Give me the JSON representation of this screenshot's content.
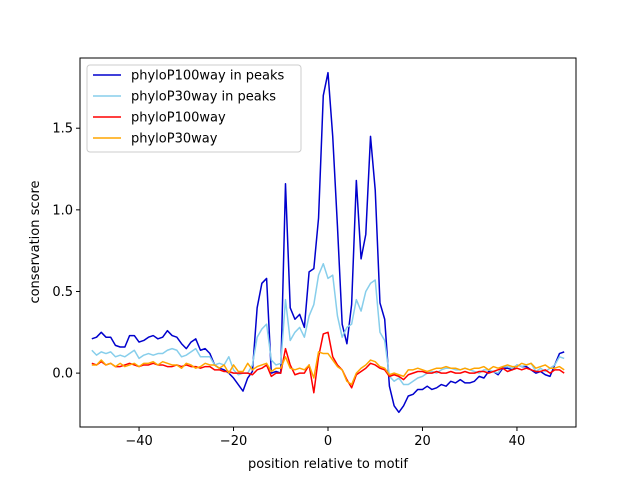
{
  "chart_data": {
    "type": "line",
    "title": "",
    "xlabel": "position relative to motif",
    "ylabel": "conservation score",
    "xlim": [
      -52.5,
      52.5
    ],
    "ylim": [
      -0.33,
      1.93
    ],
    "xticks": [
      -40,
      -20,
      0,
      20,
      40
    ],
    "yticks": [
      0.0,
      0.5,
      1.0,
      1.5
    ],
    "xtick_labels": [
      "−40",
      "−20",
      "0",
      "20",
      "40"
    ],
    "ytick_labels": [
      "0.0",
      "0.5",
      "1.0",
      "1.5"
    ],
    "grid": false,
    "legend_position": "top-left",
    "x_start": -50,
    "x_end": 50,
    "series": [
      {
        "name": "phyloP100way in peaks",
        "color": "#0000cd",
        "values": [
          0.21,
          0.22,
          0.25,
          0.22,
          0.22,
          0.17,
          0.16,
          0.16,
          0.23,
          0.23,
          0.19,
          0.2,
          0.22,
          0.23,
          0.21,
          0.22,
          0.26,
          0.23,
          0.22,
          0.18,
          0.15,
          0.19,
          0.21,
          0.14,
          0.15,
          0.12,
          0.05,
          0.03,
          0.02,
          0.0,
          -0.03,
          -0.07,
          -0.11,
          -0.03,
          0.01,
          0.4,
          0.55,
          0.58,
          0.0,
          0.01,
          0.0,
          1.16,
          0.4,
          0.33,
          0.36,
          0.28,
          0.62,
          0.64,
          0.95,
          1.7,
          1.84,
          1.45,
          0.9,
          0.3,
          0.18,
          0.42,
          1.18,
          0.7,
          0.85,
          1.45,
          1.12,
          0.43,
          0.33,
          -0.08,
          -0.2,
          -0.24,
          -0.2,
          -0.14,
          -0.13,
          -0.1,
          -0.1,
          -0.08,
          -0.1,
          -0.09,
          -0.07,
          -0.08,
          -0.05,
          -0.06,
          -0.04,
          -0.06,
          -0.06,
          -0.05,
          -0.02,
          -0.03,
          0.01,
          0.01,
          -0.01,
          0.03,
          0.03,
          0.02,
          0.05,
          0.04,
          0.04,
          0.02,
          0.0,
          0.01,
          -0.01,
          -0.02,
          0.05,
          0.12,
          0.13
        ]
      },
      {
        "name": "phyloP30way in peaks",
        "color": "#87ceeb",
        "values": [
          0.14,
          0.11,
          0.13,
          0.12,
          0.13,
          0.1,
          0.11,
          0.1,
          0.12,
          0.14,
          0.09,
          0.11,
          0.12,
          0.11,
          0.12,
          0.12,
          0.14,
          0.15,
          0.14,
          0.1,
          0.11,
          0.13,
          0.15,
          0.1,
          0.1,
          0.1,
          0.05,
          0.06,
          0.05,
          0.1,
          0.02,
          -0.01,
          0.0,
          0.0,
          0.05,
          0.22,
          0.27,
          0.3,
          0.08,
          0.05,
          0.06,
          0.45,
          0.2,
          0.25,
          0.28,
          0.22,
          0.35,
          0.42,
          0.6,
          0.67,
          0.58,
          0.6,
          0.35,
          0.22,
          0.28,
          0.3,
          0.45,
          0.38,
          0.5,
          0.55,
          0.57,
          0.25,
          0.2,
          -0.02,
          -0.05,
          -0.03,
          -0.07,
          -0.07,
          -0.05,
          -0.03,
          -0.02,
          0.0,
          0.01,
          0.0,
          0.02,
          0.03,
          0.03,
          0.02,
          0.02,
          0.03,
          0.02,
          0.01,
          0.0,
          0.02,
          0.02,
          0.01,
          0.0,
          0.04,
          0.04,
          0.03,
          0.05,
          0.04,
          0.05,
          0.06,
          0.01,
          0.03,
          0.01,
          0.03,
          0.05,
          0.1,
          0.09
        ]
      },
      {
        "name": "phyloP100way",
        "color": "#ff0000",
        "values": [
          0.06,
          0.05,
          0.07,
          0.05,
          0.06,
          0.04,
          0.04,
          0.05,
          0.06,
          0.05,
          0.04,
          0.05,
          0.05,
          0.06,
          0.05,
          0.05,
          0.04,
          0.04,
          0.05,
          0.04,
          0.05,
          0.04,
          0.04,
          0.03,
          0.04,
          0.04,
          0.02,
          0.02,
          0.01,
          0.01,
          0.0,
          0.0,
          0.0,
          0.0,
          -0.01,
          0.02,
          0.03,
          0.05,
          -0.02,
          0.0,
          0.0,
          0.15,
          0.05,
          -0.01,
          0.0,
          0.0,
          0.05,
          -0.12,
          0.1,
          0.24,
          0.25,
          0.1,
          0.05,
          0.02,
          -0.04,
          -0.09,
          -0.01,
          0.01,
          0.03,
          0.06,
          0.05,
          0.03,
          0.02,
          -0.02,
          -0.01,
          -0.02,
          -0.04,
          -0.01,
          0.0,
          0.01,
          0.01,
          0.0,
          0.0,
          0.01,
          0.0,
          0.0,
          0.01,
          0.0,
          0.0,
          0.01,
          0.0,
          0.0,
          0.01,
          0.01,
          0.0,
          0.01,
          0.02,
          0.03,
          0.01,
          0.02,
          0.03,
          0.02,
          0.03,
          0.02,
          0.01,
          0.01,
          0.02,
          0.0,
          0.02,
          0.02,
          0.0
        ]
      },
      {
        "name": "phyloP30way",
        "color": "#ffa500",
        "values": [
          0.05,
          0.05,
          0.08,
          0.05,
          0.06,
          0.04,
          0.06,
          0.04,
          0.05,
          0.06,
          0.04,
          0.06,
          0.06,
          0.07,
          0.05,
          0.07,
          0.06,
          0.05,
          0.05,
          0.03,
          0.06,
          0.05,
          0.03,
          0.04,
          0.06,
          0.05,
          0.05,
          0.03,
          0.05,
          0.0,
          0.05,
          0.01,
          0.01,
          0.06,
          0.02,
          0.04,
          0.05,
          0.06,
          0.01,
          0.03,
          0.03,
          0.1,
          0.03,
          0.02,
          0.03,
          0.02,
          0.05,
          -0.03,
          0.13,
          0.12,
          0.12,
          0.08,
          0.04,
          0.02,
          -0.05,
          -0.07,
          0.0,
          0.03,
          0.05,
          0.08,
          0.07,
          0.04,
          0.03,
          -0.01,
          0.0,
          -0.01,
          -0.02,
          0.02,
          0.02,
          0.03,
          0.02,
          0.01,
          0.02,
          0.03,
          0.03,
          0.04,
          0.03,
          0.03,
          0.02,
          0.03,
          0.02,
          0.03,
          0.03,
          0.04,
          0.02,
          0.04,
          0.03,
          0.04,
          0.05,
          0.04,
          0.04,
          0.06,
          0.05,
          0.06,
          0.03,
          0.04,
          0.05,
          0.03,
          0.03,
          0.04,
          0.02
        ]
      }
    ]
  }
}
